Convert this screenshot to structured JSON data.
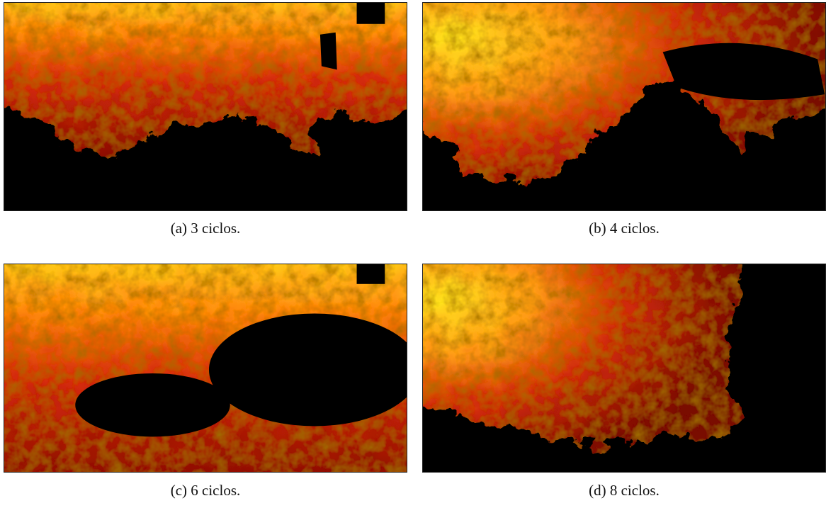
{
  "figure": {
    "panels": [
      {
        "caption": "(a) 3 ciclos."
      },
      {
        "caption": "(b) 4 ciclos."
      },
      {
        "caption": "(c) 6 ciclos."
      },
      {
        "caption": "(d) 8 ciclos."
      }
    ]
  }
}
